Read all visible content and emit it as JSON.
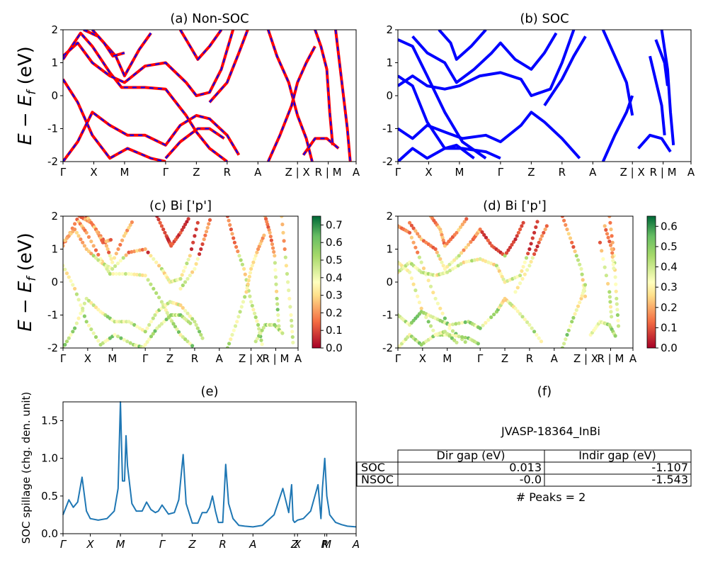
{
  "figure": {
    "title": "",
    "ylabel_bands": "E − E_f (eV)",
    "kpath_labels": [
      "Γ",
      "X",
      "M",
      "Γ",
      "Z",
      "R",
      "A",
      "Z | X",
      "R | M",
      "A"
    ]
  },
  "chart_data": [
    {
      "panel": "a",
      "type": "line",
      "title": "(a) Non-SOC",
      "ylim": [
        -2,
        2
      ],
      "yticks": [
        -2,
        -1,
        0,
        1,
        2
      ],
      "xticks": [
        "Γ",
        "X",
        "M",
        "Γ",
        "Z",
        "R",
        "A",
        "Z | X",
        "R | M",
        "A"
      ],
      "xtick_pos": [
        0,
        0.105,
        0.21,
        0.35,
        0.455,
        0.56,
        0.665,
        0.8,
        0.905,
        1.0
      ],
      "series_styles": [
        {
          "color": "#ff0000",
          "dash": "solid"
        },
        {
          "color": "#0000ff",
          "dash": "dashed"
        }
      ]
    },
    {
      "panel": "b",
      "type": "line",
      "title": "(b) SOC",
      "ylim": [
        -2,
        2
      ],
      "yticks": [
        -2,
        -1,
        0,
        1,
        2
      ],
      "xticks": [
        "Γ",
        "X",
        "M",
        "Γ",
        "Z",
        "R",
        "A",
        "Z | X",
        "R | M",
        "A"
      ],
      "xtick_pos": [
        0,
        0.105,
        0.21,
        0.35,
        0.455,
        0.56,
        0.665,
        0.8,
        0.905,
        1.0
      ],
      "series_styles": [
        {
          "color": "#0000ff",
          "dash": "solid"
        }
      ]
    },
    {
      "panel": "c",
      "type": "scatter",
      "title": "(c)  Bi ['p']",
      "ylim": [
        -2,
        2
      ],
      "yticks": [
        -2,
        -1,
        0,
        1,
        2
      ],
      "xticks": [
        "Γ",
        "X",
        "M",
        "Γ",
        "Z",
        "R",
        "A",
        "Z | X",
        "R | M",
        "A"
      ],
      "xtick_pos": [
        0,
        0.105,
        0.21,
        0.35,
        0.455,
        0.56,
        0.665,
        0.8,
        0.905,
        1.0
      ],
      "colorbar": {
        "min": 0.0,
        "max": 0.75,
        "ticks": [
          "0.0",
          "0.1",
          "0.2",
          "0.3",
          "0.4",
          "0.5",
          "0.6",
          "0.7"
        ],
        "colormap": "RdYlGn"
      }
    },
    {
      "panel": "d",
      "type": "scatter",
      "title": "(d) Bi ['p']",
      "ylim": [
        -2,
        2
      ],
      "yticks": [
        -2,
        -1,
        0,
        1,
        2
      ],
      "xticks": [
        "Γ",
        "X",
        "M",
        "Γ",
        "Z",
        "R",
        "A",
        "Z | X",
        "R | M",
        "A"
      ],
      "xtick_pos": [
        0,
        0.105,
        0.21,
        0.35,
        0.455,
        0.56,
        0.665,
        0.8,
        0.905,
        1.0
      ],
      "colorbar": {
        "min": 0.0,
        "max": 0.65,
        "ticks": [
          "0.0",
          "0.1",
          "0.2",
          "0.3",
          "0.4",
          "0.5",
          "0.6"
        ],
        "colormap": "RdYlGn"
      }
    },
    {
      "panel": "e",
      "type": "line",
      "title": "(e)",
      "ylabel": "SOC spillage (chg. den. unit)",
      "ylim": [
        0,
        1.75
      ],
      "yticks": [
        0.0,
        0.5,
        1.0,
        1.5
      ],
      "xticks": [
        "Γ",
        "X",
        "M",
        "Γ",
        "Z",
        "R",
        "A",
        "Z",
        "X",
        "R",
        "M",
        "A"
      ],
      "xtick_pos": [
        0,
        0.093,
        0.196,
        0.338,
        0.441,
        0.545,
        0.648,
        0.79,
        0.8,
        0.893,
        0.9,
        1.0
      ],
      "color": "#1f77b4",
      "x": [
        0,
        0.02,
        0.035,
        0.05,
        0.065,
        0.08,
        0.093,
        0.12,
        0.15,
        0.175,
        0.188,
        0.196,
        0.203,
        0.21,
        0.215,
        0.22,
        0.235,
        0.25,
        0.27,
        0.285,
        0.3,
        0.315,
        0.325,
        0.338,
        0.36,
        0.38,
        0.395,
        0.41,
        0.42,
        0.441,
        0.46,
        0.475,
        0.49,
        0.5,
        0.51,
        0.52,
        0.53,
        0.545,
        0.555,
        0.565,
        0.58,
        0.6,
        0.62,
        0.648,
        0.68,
        0.72,
        0.75,
        0.77,
        0.78,
        0.785,
        0.79,
        0.8,
        0.82,
        0.845,
        0.87,
        0.88,
        0.885,
        0.893,
        0.9,
        0.91,
        0.93,
        0.95,
        0.97,
        1.0
      ],
      "y": [
        0.25,
        0.45,
        0.35,
        0.42,
        0.75,
        0.3,
        0.2,
        0.18,
        0.2,
        0.3,
        0.6,
        1.75,
        0.7,
        0.7,
        1.3,
        0.9,
        0.4,
        0.3,
        0.3,
        0.42,
        0.32,
        0.28,
        0.3,
        0.38,
        0.26,
        0.28,
        0.45,
        1.05,
        0.4,
        0.14,
        0.14,
        0.28,
        0.28,
        0.35,
        0.5,
        0.3,
        0.15,
        0.15,
        0.92,
        0.4,
        0.2,
        0.11,
        0.1,
        0.09,
        0.11,
        0.25,
        0.6,
        0.28,
        0.65,
        0.18,
        0.15,
        0.18,
        0.2,
        0.3,
        0.65,
        0.2,
        0.6,
        1.0,
        0.5,
        0.25,
        0.15,
        0.12,
        0.1,
        0.09
      ]
    }
  ],
  "panel_f": {
    "title": "(f)",
    "id": "JVASP-18364_InBi",
    "col_headers": [
      "Dir gap (eV)",
      "Indir gap (eV)"
    ],
    "rows": [
      {
        "label": "SOC",
        "dir": "0.013",
        "indir": "-1.107"
      },
      {
        "label": "NSOC",
        "dir": "-0.0",
        "indir": "-1.543"
      }
    ],
    "peaks": "# Peaks = 2"
  }
}
